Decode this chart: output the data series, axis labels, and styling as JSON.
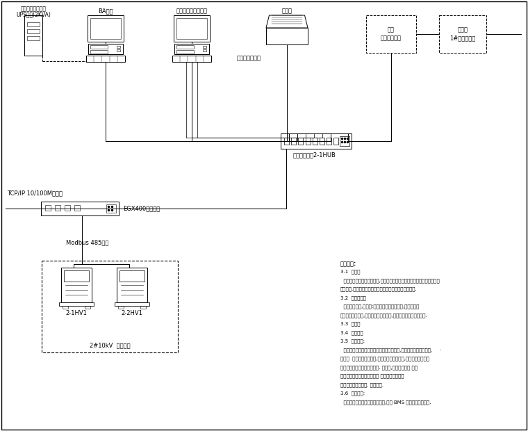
{
  "bg": "#ffffff",
  "lc": "#000000",
  "labels": {
    "ups_line1": "由系统承包商配置",
    "ups_line2": "UPS电源(2KVA)",
    "ba": "BA系统",
    "workstation": "电力监控系统工作站",
    "printer": "打印机",
    "low_volt_line1": "低压",
    "low_volt_line2": "网络电力仪表",
    "upload_line1": "上传至",
    "upload_line2": "1#总配变电所",
    "industrial_pc": "工业控制计算机",
    "hub": "以太网交换机2-1HUB",
    "tcp": "TCP/IP 10/100M以太网",
    "gateway": "EGX400以太网关",
    "modbus": "Modbus 485总线",
    "hv1": "2-1HV1",
    "hv2": "2-2HV1",
    "substation": "2#10kV  分变电所"
  },
  "notes": [
    [
      "系统说明:",
      true
    ],
    [
      "3.1  概述：",
      false
    ],
    [
      "  该建筑的全楼配电管理系统,将所有独立配电箱和变压器通过电力监控管理",
      false
    ],
    [
      "系统联网,同时通过上位计算机进行可视化集中管理和控制.",
      false
    ],
    [
      "3.2  通信配置：",
      false
    ],
    [
      "  采用分层结构,现场层:采集现场设备实时数据,管理层通过",
      false
    ],
    [
      "以太网连接的功能,实现整体可视化平台,实现接入上层系统的功能.",
      false
    ],
    [
      "3.3  监控界",
      false
    ],
    [
      "3.4  通信介绍",
      false
    ],
    [
      "3.5  控制说明:",
      false
    ],
    [
      "  系统应对现场设备进行远程采集及控制功能,实现数据集中监控功能,     ·",
      false
    ],
    [
      "包括：  遥测、遥信、遥控,和整体报表及时相应,实现系统远控模式",
      false
    ],
    [
      "功能确认入口为能源管理平台. 遥控时,相互控制联动 的功",
      false
    ],
    [
      "能确认、管控和保护处理以及 工业控制总线的分",
      false
    ],
    [
      "成公差控制确认端时, 使用平台.",
      false
    ],
    [
      "3.6  其他说明:",
      false
    ],
    [
      "  该建筑均采用综合能源管理平台,对其 BMS 系统数据对接报告.",
      false
    ]
  ]
}
